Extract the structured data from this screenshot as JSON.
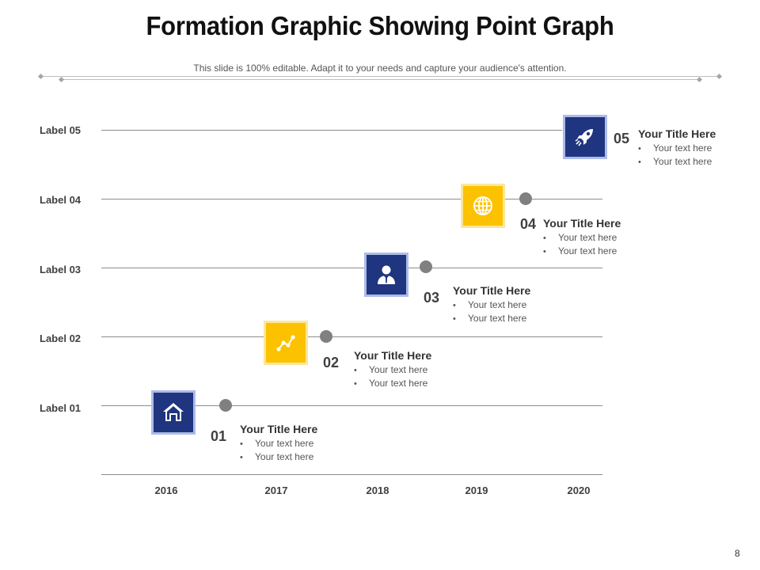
{
  "title": "Formation Graphic Showing Point Graph",
  "subtitle": "This slide is 100% editable. Adapt it to your needs and capture your audience's attention.",
  "row_labels": [
    "Label 05",
    "Label 04",
    "Label 03",
    "Label 02",
    "Label 01"
  ],
  "years": [
    "2016",
    "2017",
    "2018",
    "2019",
    "2020"
  ],
  "items": [
    {
      "number": "01",
      "icon": "home-icon",
      "color": "#1f3580",
      "title": "Your Title Here",
      "bullets": [
        "Your text here",
        "Your text here"
      ]
    },
    {
      "number": "02",
      "icon": "line-chart-icon",
      "color": "#fcc200",
      "title": "Your Title Here",
      "bullets": [
        "Your text here",
        "Your text here"
      ]
    },
    {
      "number": "03",
      "icon": "user-icon",
      "color": "#1f3580",
      "title": "Your Title Here",
      "bullets": [
        "Your text here",
        "Your text here"
      ]
    },
    {
      "number": "04",
      "icon": "globe-icon",
      "color": "#fcc200",
      "title": "Your Title Here",
      "bullets": [
        "Your text here",
        "Your text here"
      ]
    },
    {
      "number": "05",
      "icon": "rocket-icon",
      "color": "#1f3580",
      "title": "Your Title Here",
      "bullets": [
        "Your text here",
        "Your text here"
      ]
    }
  ],
  "page_number": "8",
  "colors": {
    "navy": "#1f3580",
    "gold": "#fcc200",
    "marker": "#808080"
  }
}
